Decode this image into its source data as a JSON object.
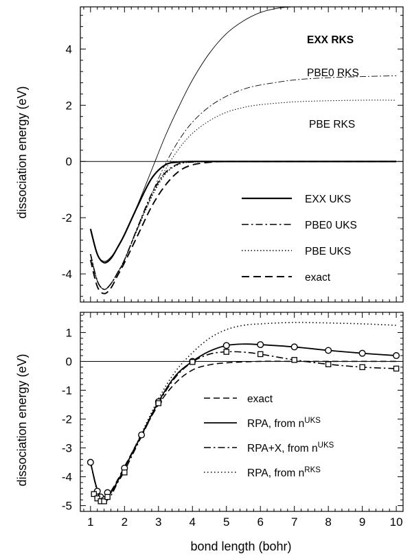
{
  "figure": {
    "x_axis_title": "bond length  (bohr)",
    "y_axis_title_top": "dissociation energy  (eV)",
    "y_axis_title_bottom": "dissociation energy  (eV)"
  },
  "chart_data": [
    {
      "type": "line",
      "panel": "top",
      "xlim": [
        0.7,
        10.2
      ],
      "ylim": [
        -5.0,
        5.5
      ],
      "x_ticks": [
        1,
        2,
        3,
        4,
        5,
        6,
        7,
        8,
        9,
        10
      ],
      "y_ticks": [
        -4,
        -2,
        0,
        2,
        4
      ],
      "y_tick_labels": [
        "-4",
        "-2",
        "0",
        "2",
        "4"
      ],
      "reference_line_y": 0,
      "series": [
        {
          "name": "EXX RKS",
          "style": "thin-solid",
          "label_style": "bold",
          "x": [
            1.0,
            1.2,
            1.4,
            1.6,
            1.8,
            2.0,
            2.4,
            2.8,
            3.2,
            3.6,
            4.0,
            4.5,
            5.0,
            5.5,
            6.0,
            6.5,
            6.9
          ],
          "y": [
            -2.4,
            -3.3,
            -3.55,
            -3.4,
            -3.05,
            -2.6,
            -1.5,
            -0.3,
            0.9,
            1.95,
            2.9,
            3.85,
            4.55,
            5.0,
            5.3,
            5.45,
            5.5
          ]
        },
        {
          "name": "PBE0 RKS",
          "style": "thin-dashdot",
          "x": [
            1.0,
            1.2,
            1.4,
            1.6,
            1.8,
            2.0,
            2.4,
            2.8,
            3.2,
            3.6,
            4.0,
            4.5,
            5.0,
            5.5,
            6.0,
            7.0,
            8.0,
            9.0,
            10.0
          ],
          "y": [
            -3.3,
            -4.25,
            -4.55,
            -4.35,
            -3.95,
            -3.5,
            -2.3,
            -1.15,
            -0.1,
            0.75,
            1.4,
            1.95,
            2.32,
            2.57,
            2.72,
            2.9,
            2.98,
            3.02,
            3.05
          ]
        },
        {
          "name": "PBE RKS",
          "style": "thin-dotted",
          "x": [
            1.0,
            1.2,
            1.4,
            1.6,
            1.8,
            2.0,
            2.4,
            2.8,
            3.2,
            3.6,
            4.0,
            4.5,
            5.0,
            5.5,
            6.0,
            7.0,
            8.0,
            9.0,
            10.0
          ],
          "y": [
            -3.3,
            -4.25,
            -4.55,
            -4.35,
            -3.95,
            -3.5,
            -2.35,
            -1.25,
            -0.3,
            0.45,
            1.0,
            1.45,
            1.75,
            1.92,
            2.02,
            2.12,
            2.16,
            2.18,
            2.18
          ]
        },
        {
          "name": "EXX UKS",
          "style": "thick-solid",
          "x": [
            1.0,
            1.2,
            1.4,
            1.6,
            1.8,
            2.0,
            2.4,
            2.8,
            3.2,
            3.6,
            4.0,
            4.5,
            5.0,
            6.0,
            7.0,
            8.0,
            9.0,
            10.0
          ],
          "y": [
            -2.4,
            -3.3,
            -3.6,
            -3.45,
            -3.05,
            -2.6,
            -1.55,
            -0.6,
            -0.12,
            -0.02,
            0.0,
            0.0,
            0.0,
            0.0,
            0.0,
            0.0,
            0.0,
            0.0
          ]
        },
        {
          "name": "PBE0 UKS",
          "style": "thick-dashdot",
          "x": [
            1.0,
            1.2,
            1.4,
            1.6,
            1.8,
            2.0,
            2.4,
            2.8,
            3.2,
            3.6,
            4.0,
            4.5,
            5.0,
            6.0,
            7.0,
            8.0,
            9.0,
            10.0
          ],
          "y": [
            -3.3,
            -4.25,
            -4.55,
            -4.35,
            -3.95,
            -3.5,
            -2.3,
            -1.15,
            -0.4,
            -0.08,
            -0.02,
            0.0,
            0.0,
            0.0,
            0.0,
            0.0,
            0.0,
            0.0
          ]
        },
        {
          "name": "PBE UKS",
          "style": "thick-dotted",
          "x": [
            1.0,
            1.2,
            1.4,
            1.6,
            1.8,
            2.0,
            2.4,
            2.8,
            3.2,
            3.6,
            4.0,
            4.5,
            5.0,
            6.0,
            7.0,
            8.0,
            9.0,
            10.0
          ],
          "y": [
            -3.3,
            -4.25,
            -4.55,
            -4.35,
            -3.95,
            -3.5,
            -2.35,
            -1.25,
            -0.45,
            -0.1,
            -0.02,
            0.0,
            0.0,
            0.0,
            0.0,
            0.0,
            0.0,
            0.0
          ]
        },
        {
          "name": "exact",
          "style": "thick-dashed",
          "x": [
            1.0,
            1.2,
            1.4,
            1.6,
            1.8,
            2.0,
            2.4,
            2.8,
            3.2,
            3.6,
            4.0,
            4.5,
            5.0,
            6.0,
            7.0,
            8.0,
            9.0,
            10.0
          ],
          "y": [
            -3.5,
            -4.45,
            -4.7,
            -4.5,
            -4.05,
            -3.6,
            -2.6,
            -1.6,
            -0.85,
            -0.35,
            -0.12,
            -0.03,
            0.0,
            0.0,
            0.0,
            0.0,
            0.0,
            0.0
          ]
        }
      ]
    },
    {
      "type": "line",
      "panel": "bottom",
      "xlim": [
        0.7,
        10.2
      ],
      "ylim": [
        -5.2,
        1.7
      ],
      "x_ticks": [
        1,
        2,
        3,
        4,
        5,
        6,
        7,
        8,
        9,
        10
      ],
      "x_tick_labels": [
        "1",
        "2",
        "3",
        "4",
        "5",
        "6",
        "7",
        "8",
        "9",
        "10"
      ],
      "y_ticks": [
        -5,
        -4,
        -3,
        -2,
        -1,
        0,
        1
      ],
      "y_tick_labels": [
        "-5",
        "-4",
        "-3",
        "-2",
        "-1",
        "0",
        "1"
      ],
      "reference_line_y": 0,
      "series": [
        {
          "name": "exact",
          "style": "dashed",
          "x": [
            1.0,
            1.2,
            1.4,
            1.6,
            1.8,
            2.0,
            2.5,
            3.0,
            3.5,
            4.0,
            4.5,
            5.0,
            6.0,
            7.0,
            8.0,
            9.0,
            10.0
          ],
          "y": [
            -3.5,
            -4.45,
            -4.7,
            -4.5,
            -4.1,
            -3.65,
            -2.55,
            -1.5,
            -0.75,
            -0.3,
            -0.12,
            -0.05,
            0.0,
            0.0,
            0.0,
            0.0,
            0.0
          ]
        },
        {
          "name": "RPA, from n",
          "name_sup": "UKS",
          "style": "solid",
          "marker": "circle",
          "x": [
            1.0,
            1.2,
            1.4,
            1.6,
            1.8,
            2.0,
            2.5,
            3.0,
            3.5,
            4.0,
            4.5,
            5.0,
            5.5,
            6.0,
            7.0,
            8.0,
            9.0,
            10.0
          ],
          "y": [
            -3.5,
            -4.45,
            -4.75,
            -4.55,
            -4.15,
            -3.7,
            -2.55,
            -1.4,
            -0.5,
            0.0,
            0.35,
            0.55,
            0.6,
            0.58,
            0.5,
            0.38,
            0.28,
            0.2
          ],
          "marker_x": [
            1.0,
            1.2,
            1.3,
            1.4,
            1.5,
            2.0,
            2.5,
            3.0,
            4.0,
            5.0,
            6.0,
            7.0,
            8.0,
            9.0,
            10.0
          ],
          "marker_y": [
            -3.5,
            -4.5,
            -4.7,
            -4.8,
            -4.55,
            -3.7,
            -2.55,
            -1.4,
            0.0,
            0.55,
            0.58,
            0.5,
            0.38,
            0.28,
            0.2
          ]
        },
        {
          "name": "RPA+X, from n",
          "name_sup": "UKS",
          "style": "dashdot",
          "marker": "square",
          "x": [
            1.0,
            1.2,
            1.4,
            1.6,
            1.8,
            2.0,
            2.5,
            3.0,
            3.5,
            4.0,
            4.5,
            5.0,
            5.5,
            6.0,
            7.0,
            8.0,
            9.0,
            10.0
          ],
          "y": [
            -3.5,
            -4.5,
            -4.85,
            -4.65,
            -4.2,
            -3.8,
            -2.6,
            -1.45,
            -0.55,
            -0.02,
            0.25,
            0.33,
            0.32,
            0.25,
            0.05,
            -0.1,
            -0.2,
            -0.25
          ],
          "marker_x": [
            1.1,
            1.2,
            1.3,
            1.4,
            1.5,
            2.0,
            3.0,
            4.0,
            5.0,
            6.0,
            7.0,
            8.0,
            9.0,
            10.0
          ],
          "marker_y": [
            -4.6,
            -4.75,
            -4.85,
            -4.85,
            -4.7,
            -3.85,
            -1.45,
            -0.02,
            0.33,
            0.25,
            0.05,
            -0.1,
            -0.2,
            -0.25
          ]
        },
        {
          "name": "RPA, from n",
          "name_sup": "RKS",
          "style": "dotted",
          "x": [
            1.0,
            1.2,
            1.4,
            1.6,
            1.8,
            2.0,
            2.5,
            3.0,
            3.5,
            4.0,
            4.5,
            5.0,
            5.5,
            6.0,
            7.0,
            8.0,
            9.0,
            10.0
          ],
          "y": [
            -3.5,
            -4.45,
            -4.75,
            -4.55,
            -4.15,
            -3.7,
            -2.5,
            -1.3,
            -0.35,
            0.3,
            0.8,
            1.1,
            1.25,
            1.3,
            1.35,
            1.33,
            1.3,
            1.25
          ]
        }
      ]
    }
  ]
}
